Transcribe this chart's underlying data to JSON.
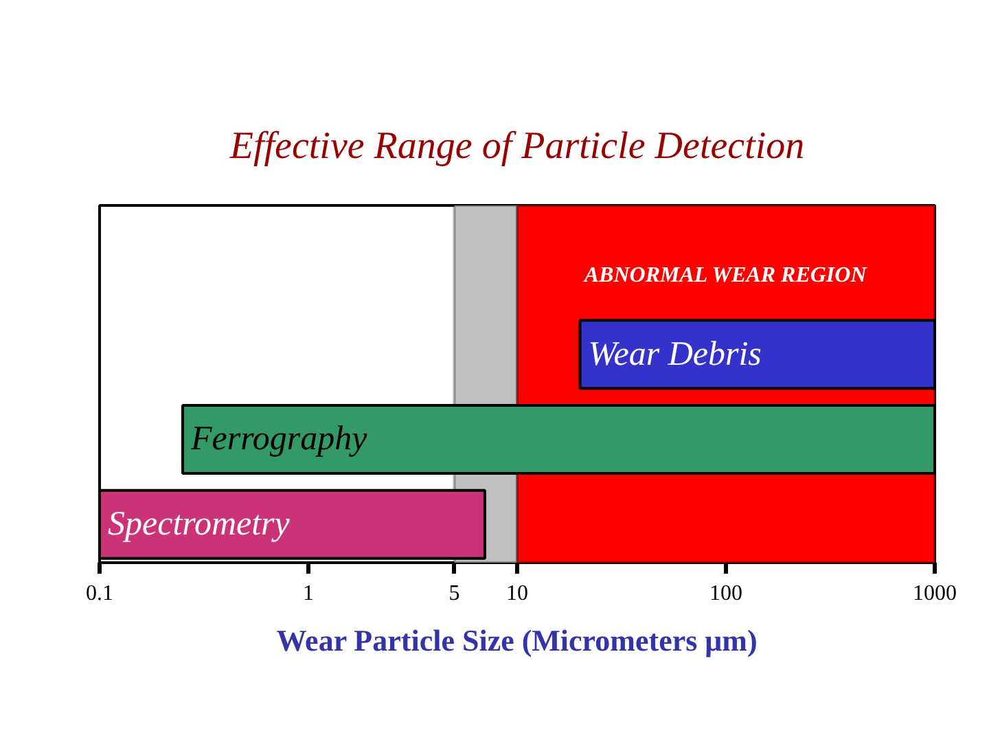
{
  "chart_data": {
    "type": "bar",
    "title": "Effective Range of Particle Detection",
    "xlabel": "Wear Particle Size (Micrometers μm)",
    "orientation": "horizontal",
    "categories": [
      "Wear Debris",
      "Ferrography",
      "Spectrometry"
    ],
    "base": [
      20,
      0.25,
      0.1
    ],
    "values": [
      980,
      999.75,
      6.9
    ],
    "colors": [
      "#3333cc",
      "#339966",
      "#cc3377"
    ],
    "log": "x",
    "xlim": [
      0.1,
      1000
    ],
    "xticks": [
      0.1,
      1,
      5,
      10,
      100,
      1000
    ],
    "grid": false,
    "bands": [
      {
        "axis": "x",
        "from": 5,
        "to": 10,
        "color": "#c0c0c0"
      },
      {
        "axis": "x",
        "from": 10,
        "to": 1000,
        "label": "ABNORMAL WEAR REGION",
        "color": "#ff0000"
      }
    ]
  }
}
